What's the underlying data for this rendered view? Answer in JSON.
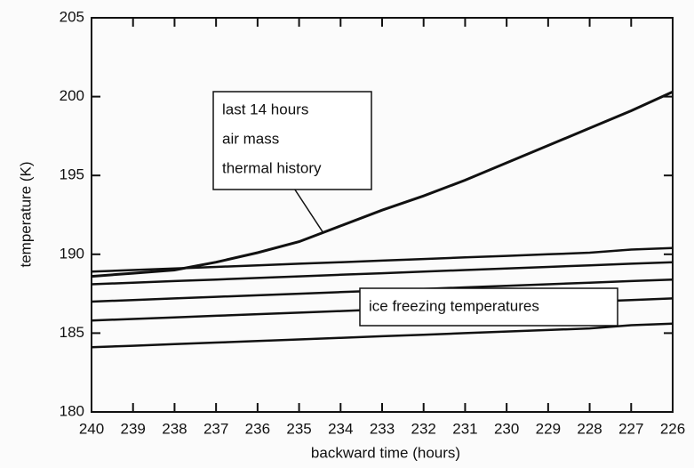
{
  "chart_data": {
    "type": "line",
    "xlabel": "backward time (hours)",
    "ylabel": "temperature (K)",
    "x": [
      240,
      239,
      238,
      237,
      236,
      235,
      234,
      233,
      232,
      231,
      230,
      229,
      228,
      227,
      226
    ],
    "xlim": [
      240,
      226
    ],
    "xticks": [
      240,
      239,
      238,
      237,
      236,
      235,
      234,
      233,
      232,
      231,
      230,
      229,
      228,
      227,
      226
    ],
    "ylim": [
      180,
      205
    ],
    "yticks": [
      180,
      185,
      190,
      195,
      200,
      205
    ],
    "series": [
      {
        "color": "#111111",
        "values": [
          188.6,
          188.8,
          189.0,
          189.5,
          190.1,
          190.8,
          191.8,
          192.8,
          193.7,
          194.7,
          195.8,
          196.9,
          198.0,
          199.1,
          200.3
        ]
      },
      {
        "color": "#111111",
        "values": [
          188.9,
          189.0,
          189.1,
          189.2,
          189.3,
          189.4,
          189.5,
          189.6,
          189.7,
          189.8,
          189.9,
          190.0,
          190.1,
          190.3,
          190.4
        ]
      },
      {
        "color": "#111111",
        "values": [
          188.1,
          188.2,
          188.3,
          188.4,
          188.5,
          188.6,
          188.7,
          188.8,
          188.9,
          189.0,
          189.1,
          189.2,
          189.3,
          189.4,
          189.5
        ]
      },
      {
        "color": "#111111",
        "values": [
          187.0,
          187.1,
          187.2,
          187.3,
          187.4,
          187.5,
          187.6,
          187.7,
          187.8,
          187.9,
          188.0,
          188.1,
          188.2,
          188.3,
          188.4
        ]
      },
      {
        "color": "#111111",
        "values": [
          185.8,
          185.9,
          186.0,
          186.1,
          186.2,
          186.3,
          186.4,
          186.5,
          186.6,
          186.7,
          186.8,
          186.9,
          187.0,
          187.1,
          187.2
        ]
      },
      {
        "color": "#111111",
        "values": [
          184.1,
          184.2,
          184.3,
          184.4,
          184.5,
          184.6,
          184.7,
          184.8,
          184.9,
          185.0,
          185.1,
          185.2,
          185.3,
          185.5,
          185.6
        ]
      }
    ],
    "annotations": [
      {
        "lines": [
          "last 14 hours",
          "air mass",
          "thermal history"
        ]
      },
      {
        "lines": [
          "ice freezing temperatures"
        ]
      }
    ]
  }
}
